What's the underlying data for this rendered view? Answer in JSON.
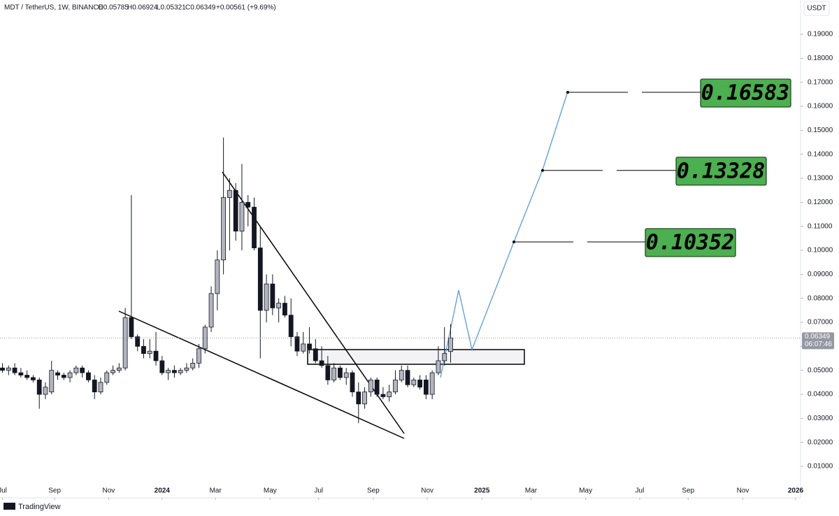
{
  "chart_data": {
    "type": "candlestick",
    "header": {
      "symbol": "MDT / TetherUS, 1W, BINANCE",
      "open": "O0.05785",
      "high": "H0.06924",
      "low": "L0.05321",
      "close": "C0.06349",
      "change": "+0.00561 (+9.69%)"
    },
    "currency": "USDT",
    "last_price": "0.06349",
    "countdown": "06:07:46",
    "brand": "TradingView",
    "x": [
      -26,
      -25,
      -24,
      -23,
      -22,
      -21,
      -20,
      -19,
      -18,
      -17,
      -16,
      -15,
      -14,
      -13,
      -12,
      -11,
      -10,
      -9,
      -8,
      -7,
      -6,
      -5,
      -4,
      -3,
      -2,
      -1,
      0,
      1,
      2,
      3,
      4,
      5,
      6,
      7,
      8,
      9,
      10,
      11,
      12,
      13,
      14,
      15,
      16,
      17,
      18,
      19,
      20,
      21,
      22,
      23,
      24,
      25,
      26,
      27,
      28,
      29,
      30,
      31,
      32,
      33,
      34,
      35,
      36,
      37,
      38,
      39,
      40,
      41,
      42,
      43,
      44,
      45,
      46,
      47
    ],
    "candles": [
      [
        0.051,
        0.053,
        0.049,
        0.05
      ],
      [
        0.05,
        0.052,
        0.048,
        0.051
      ],
      [
        0.051,
        0.053,
        0.048,
        0.049
      ],
      [
        0.049,
        0.051,
        0.047,
        0.048
      ],
      [
        0.048,
        0.05,
        0.046,
        0.047
      ],
      [
        0.047,
        0.048,
        0.045,
        0.046
      ],
      [
        0.046,
        0.047,
        0.034,
        0.04
      ],
      [
        0.04,
        0.045,
        0.038,
        0.043
      ],
      [
        0.041,
        0.054,
        0.04,
        0.05
      ],
      [
        0.049,
        0.05,
        0.046,
        0.048
      ],
      [
        0.048,
        0.049,
        0.046,
        0.047
      ],
      [
        0.047,
        0.05,
        0.045,
        0.049
      ],
      [
        0.049,
        0.052,
        0.048,
        0.051
      ],
      [
        0.051,
        0.052,
        0.047,
        0.049
      ],
      [
        0.049,
        0.05,
        0.045,
        0.046
      ],
      [
        0.046,
        0.048,
        0.038,
        0.041
      ],
      [
        0.041,
        0.047,
        0.04,
        0.045
      ],
      [
        0.045,
        0.05,
        0.044,
        0.049
      ],
      [
        0.049,
        0.052,
        0.048,
        0.05
      ],
      [
        0.05,
        0.053,
        0.049,
        0.051
      ],
      [
        0.051,
        0.076,
        0.05,
        0.072
      ],
      [
        0.072,
        0.123,
        0.063,
        0.064
      ],
      [
        0.064,
        0.065,
        0.058,
        0.06
      ],
      [
        0.06,
        0.063,
        0.055,
        0.057
      ],
      [
        0.057,
        0.063,
        0.055,
        0.058
      ],
      [
        0.058,
        0.066,
        0.052,
        0.054
      ],
      [
        0.054,
        0.056,
        0.048,
        0.049
      ],
      [
        0.049,
        0.051,
        0.046,
        0.05
      ],
      [
        0.05,
        0.052,
        0.047,
        0.049
      ],
      [
        0.049,
        0.051,
        0.048,
        0.05
      ],
      [
        0.05,
        0.053,
        0.049,
        0.051
      ],
      [
        0.051,
        0.055,
        0.05,
        0.053
      ],
      [
        0.053,
        0.061,
        0.051,
        0.059
      ],
      [
        0.059,
        0.069,
        0.057,
        0.068
      ],
      [
        0.068,
        0.085,
        0.066,
        0.082
      ],
      [
        0.082,
        0.1,
        0.075,
        0.096
      ],
      [
        0.096,
        0.147,
        0.09,
        0.122
      ],
      [
        0.122,
        0.13,
        0.1,
        0.125
      ],
      [
        0.125,
        0.128,
        0.104,
        0.108
      ],
      [
        0.108,
        0.136,
        0.1,
        0.12
      ],
      [
        0.12,
        0.123,
        0.11,
        0.118
      ],
      [
        0.118,
        0.122,
        0.1,
        0.101
      ],
      [
        0.101,
        0.11,
        0.055,
        0.075
      ],
      [
        0.075,
        0.09,
        0.07,
        0.086
      ],
      [
        0.086,
        0.09,
        0.073,
        0.076
      ],
      [
        0.076,
        0.08,
        0.07,
        0.078
      ],
      [
        0.078,
        0.081,
        0.072,
        0.073
      ],
      [
        0.073,
        0.08,
        0.06,
        0.064
      ],
      [
        0.064,
        0.066,
        0.056,
        0.058
      ],
      [
        0.058,
        0.066,
        0.057,
        0.061
      ],
      [
        0.061,
        0.068,
        0.057,
        0.059
      ],
      [
        0.059,
        0.063,
        0.053,
        0.054
      ],
      [
        0.054,
        0.06,
        0.051,
        0.052
      ],
      [
        0.052,
        0.056,
        0.044,
        0.046
      ],
      [
        0.046,
        0.053,
        0.045,
        0.051
      ],
      [
        0.051,
        0.052,
        0.046,
        0.047
      ],
      [
        0.047,
        0.051,
        0.044,
        0.049
      ],
      [
        0.049,
        0.05,
        0.039,
        0.041
      ],
      [
        0.041,
        0.045,
        0.028,
        0.036
      ],
      [
        0.036,
        0.043,
        0.034,
        0.041
      ],
      [
        0.041,
        0.047,
        0.039,
        0.046
      ],
      [
        0.046,
        0.047,
        0.039,
        0.04
      ],
      [
        0.04,
        0.043,
        0.038,
        0.039
      ],
      [
        0.039,
        0.044,
        0.037,
        0.041
      ],
      [
        0.041,
        0.05,
        0.04,
        0.046
      ],
      [
        0.046,
        0.052,
        0.045,
        0.05
      ],
      [
        0.05,
        0.052,
        0.043,
        0.044
      ],
      [
        0.044,
        0.047,
        0.043,
        0.046
      ],
      [
        0.046,
        0.048,
        0.042,
        0.043
      ],
      [
        0.046,
        0.048,
        0.038,
        0.04
      ],
      [
        0.04,
        0.05,
        0.038,
        0.049
      ],
      [
        0.049,
        0.06,
        0.048,
        0.054
      ],
      [
        0.054,
        0.068,
        0.052,
        0.057
      ],
      [
        0.05785,
        0.06924,
        0.05321,
        0.06349
      ]
    ],
    "up_color": "#b2b5be",
    "down_color": "#131722",
    "targets": [
      0.16583,
      0.13328,
      0.10352
    ],
    "target_color": "#4caf50",
    "xlim": [
      -26.4,
      104
    ],
    "xticks": [
      {
        "value": -26,
        "label": "Jul"
      },
      {
        "value": -17.5,
        "label": "Sep"
      },
      {
        "value": -8.7,
        "label": "Nov"
      },
      {
        "value": 0,
        "label": "2024"
      },
      {
        "value": 8.7,
        "label": "Mar"
      },
      {
        "value": 17.6,
        "label": "May"
      },
      {
        "value": 25.5,
        "label": "Jul"
      },
      {
        "value": 34.4,
        "label": "Sep"
      },
      {
        "value": 43.2,
        "label": "Nov"
      },
      {
        "value": 52.1,
        "label": "2025"
      },
      {
        "value": 60.1,
        "label": "Mar"
      },
      {
        "value": 69,
        "label": "May"
      },
      {
        "value": 77.8,
        "label": "Jul"
      },
      {
        "value": 85.7,
        "label": "Sep"
      },
      {
        "value": 94.6,
        "label": "Nov"
      },
      {
        "value": 103.2,
        "label": "2026"
      }
    ],
    "ylim": [
      -0.00107,
      0.2043
    ],
    "yticks": [
      {
        "value": 0.01,
        "label": "0.01000"
      },
      {
        "value": 0.02,
        "label": "0.02000"
      },
      {
        "value": 0.03,
        "label": "0.03000"
      },
      {
        "value": 0.04,
        "label": "0.04000"
      },
      {
        "value": 0.05,
        "label": "0.05000"
      },
      {
        "value": 0.06,
        "label": "0.06000"
      },
      {
        "value": 0.07,
        "label": "0.07000"
      },
      {
        "value": 0.08,
        "label": "0.08000"
      },
      {
        "value": 0.09,
        "label": "0.09000"
      },
      {
        "value": 0.1,
        "label": "0.10000"
      },
      {
        "value": 0.11,
        "label": "0.11000"
      },
      {
        "value": 0.12,
        "label": "0.12000"
      },
      {
        "value": 0.13,
        "label": "0.13000"
      },
      {
        "value": 0.14,
        "label": "0.14000"
      },
      {
        "value": 0.15,
        "label": "0.15000"
      },
      {
        "value": 0.16,
        "label": "0.16000"
      },
      {
        "value": 0.17,
        "label": "0.17000"
      },
      {
        "value": 0.18,
        "label": "0.18000"
      },
      {
        "value": 0.19,
        "label": "0.19000"
      }
    ]
  }
}
